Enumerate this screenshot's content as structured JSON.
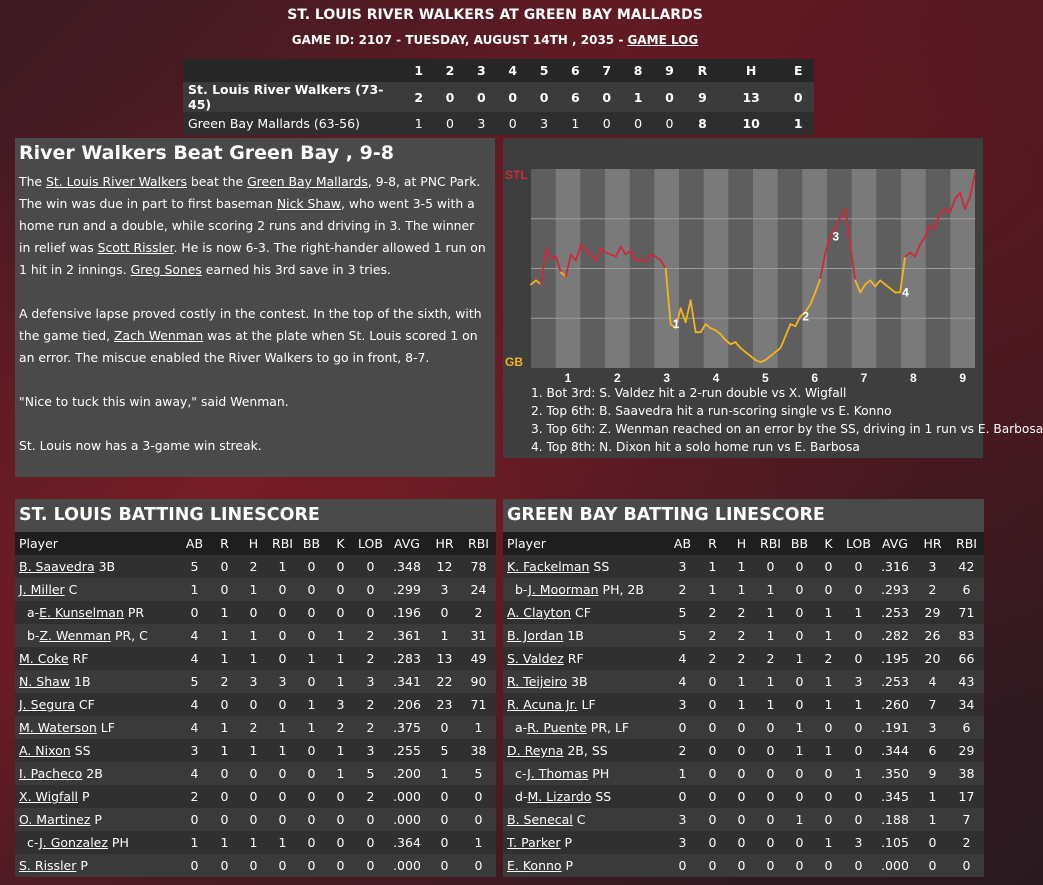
{
  "header": {
    "title": "ST. LOUIS RIVER WALKERS AT GREEN BAY MALLARDS",
    "subtitle": "GAME ID: 2107 - TUESDAY, AUGUST 14TH , 2035 -",
    "game_log_link": "GAME LOG"
  },
  "linescore": {
    "headers": [
      "1",
      "2",
      "3",
      "4",
      "5",
      "6",
      "7",
      "8",
      "9",
      "R",
      "H",
      "E"
    ],
    "rows": [
      {
        "team": "St. Louis River Walkers (73-45)",
        "innings": [
          "2",
          "0",
          "0",
          "0",
          "0",
          "6",
          "0",
          "1",
          "0"
        ],
        "r": "9",
        "h": "13",
        "e": "0"
      },
      {
        "team": "Green Bay Mallards (63-56)",
        "innings": [
          "1",
          "0",
          "3",
          "0",
          "3",
          "1",
          "0",
          "0",
          "0"
        ],
        "r": "8",
        "h": "10",
        "e": "1"
      }
    ]
  },
  "recap": {
    "heading": "River Walkers Beat Green Bay , 9-8",
    "p1": {
      "t1": "The ",
      "l1": "St. Louis River Walkers",
      "t2": " beat the ",
      "l2": "Green Bay Mallards",
      "t3": ", 9-8, at PNC Park. The win was due in part to first baseman ",
      "l3": "Nick Shaw",
      "t4": ", who went 3-5 with a home run and a double, while scoring 2 runs and driving in 3. The winner in relief was ",
      "l4": "Scott Rissler",
      "t5": ". He is now 6-3. The right-hander allowed 1 run on 1 hit in 2 innings. ",
      "l5": "Greg Sones",
      "t6": " earned his 3rd save in 3 tries."
    },
    "p2": {
      "t1": "A defensive lapse proved costly in the contest. In the top of the sixth, with the game tied, ",
      "l1": "Zach Wenman",
      "t2": " was at the plate when St. Louis scored 1 on an error. The miscue enabled the River Walkers to go in front, 8-7."
    },
    "p3": "\"Nice to tuck this win away,\" said Wenman.",
    "p4": "St. Louis now has a 3-game win streak."
  },
  "chart_data": {
    "type": "line",
    "title": "",
    "top_label": "STL",
    "bottom_label": "GB",
    "innings": [
      "1",
      "2",
      "3",
      "4",
      "5",
      "6",
      "7",
      "8",
      "9"
    ],
    "ylim": [
      0,
      1
    ],
    "colors": {
      "stl_side": "#cc2a3c",
      "gb_side": "#f2b51c"
    },
    "series": [
      {
        "values": [
          0.42,
          0.44,
          0.42,
          0.6,
          0.55,
          0.56,
          0.48,
          0.46,
          0.57,
          0.54,
          0.62,
          0.59,
          0.57,
          0.54,
          0.6,
          0.58,
          0.57,
          0.56,
          0.61,
          0.57,
          0.59,
          0.54,
          0.55,
          0.53,
          0.57,
          0.56,
          0.54,
          0.5,
          0.22,
          0.2,
          0.3,
          0.23,
          0.34,
          0.18,
          0.18,
          0.22,
          0.2,
          0.19,
          0.17,
          0.14,
          0.12,
          0.13,
          0.1,
          0.08,
          0.06,
          0.04,
          0.03,
          0.04,
          0.06,
          0.08,
          0.1,
          0.16,
          0.22,
          0.21,
          0.26,
          0.28,
          0.32,
          0.38,
          0.45,
          0.58,
          0.66,
          0.7,
          0.76,
          0.8,
          0.62,
          0.44,
          0.38,
          0.42,
          0.44,
          0.41,
          0.44,
          0.42,
          0.4,
          0.38,
          0.38,
          0.56,
          0.58,
          0.56,
          0.62,
          0.66,
          0.72,
          0.7,
          0.78,
          0.8,
          0.78,
          0.85,
          0.88,
          0.8,
          0.86,
          0.98
        ]
      }
    ],
    "markers": [
      {
        "label": "1",
        "index": 28
      },
      {
        "label": "2",
        "index": 54
      },
      {
        "label": "3",
        "index": 60
      },
      {
        "label": "4",
        "index": 74
      }
    ],
    "events": [
      "1. Bot 3rd: S. Valdez hit a 2-run double vs X. Wigfall",
      "2. Top 6th: B. Saavedra hit a run-scoring single vs E. Konno",
      "3. Top 6th: Z. Wenman reached on an error by the SS, driving in 1 run vs E. Barbosa",
      "4. Top 8th: N. Dixon hit a solo home run vs E. Barbosa"
    ]
  },
  "stl_batting": {
    "title": "ST. LOUIS BATTING LINESCORE",
    "columns": [
      "Player",
      "AB",
      "R",
      "H",
      "RBI",
      "BB",
      "K",
      "LOB",
      "AVG",
      "HR",
      "RBI"
    ],
    "rows": [
      {
        "prefix": "",
        "name": "B. Saavedra",
        "pos": "3B",
        "stats": [
          "5",
          "0",
          "2",
          "1",
          "0",
          "0",
          "0",
          ".348",
          "12",
          "78"
        ]
      },
      {
        "prefix": "",
        "name": "J. Miller",
        "pos": "C",
        "stats": [
          "1",
          "0",
          "1",
          "0",
          "0",
          "0",
          "0",
          ".299",
          "3",
          "24"
        ]
      },
      {
        "prefix": "a-",
        "name": "E. Kunselman",
        "pos": "PR",
        "stats": [
          "0",
          "1",
          "0",
          "0",
          "0",
          "0",
          "0",
          ".196",
          "0",
          "2"
        ]
      },
      {
        "prefix": "b-",
        "name": "Z. Wenman",
        "pos": "PR, C",
        "stats": [
          "4",
          "1",
          "1",
          "0",
          "0",
          "1",
          "2",
          ".361",
          "1",
          "31"
        ]
      },
      {
        "prefix": "",
        "name": "M. Coke",
        "pos": "RF",
        "stats": [
          "4",
          "1",
          "1",
          "0",
          "1",
          "1",
          "2",
          ".283",
          "13",
          "49"
        ]
      },
      {
        "prefix": "",
        "name": "N. Shaw",
        "pos": "1B",
        "stats": [
          "5",
          "2",
          "3",
          "3",
          "0",
          "1",
          "3",
          ".341",
          "22",
          "90"
        ]
      },
      {
        "prefix": "",
        "name": "J. Segura",
        "pos": "CF",
        "stats": [
          "4",
          "0",
          "0",
          "0",
          "1",
          "3",
          "2",
          ".206",
          "23",
          "71"
        ]
      },
      {
        "prefix": "",
        "name": "M. Waterson",
        "pos": "LF",
        "stats": [
          "4",
          "1",
          "2",
          "1",
          "1",
          "2",
          "2",
          ".375",
          "0",
          "1"
        ]
      },
      {
        "prefix": "",
        "name": "A. Nixon",
        "pos": "SS",
        "stats": [
          "3",
          "1",
          "1",
          "1",
          "0",
          "1",
          "3",
          ".255",
          "5",
          "38"
        ]
      },
      {
        "prefix": "",
        "name": "I. Pacheco",
        "pos": "2B",
        "stats": [
          "4",
          "0",
          "0",
          "0",
          "0",
          "1",
          "5",
          ".200",
          "1",
          "5"
        ]
      },
      {
        "prefix": "",
        "name": "X. Wigfall",
        "pos": "P",
        "stats": [
          "2",
          "0",
          "0",
          "0",
          "0",
          "0",
          "2",
          ".000",
          "0",
          "0"
        ]
      },
      {
        "prefix": "",
        "name": "O. Martinez",
        "pos": "P",
        "stats": [
          "0",
          "0",
          "0",
          "0",
          "0",
          "0",
          "0",
          ".000",
          "0",
          "0"
        ]
      },
      {
        "prefix": "c-",
        "name": "J. Gonzalez",
        "pos": "PH",
        "stats": [
          "1",
          "1",
          "1",
          "1",
          "0",
          "0",
          "0",
          ".364",
          "0",
          "1"
        ]
      },
      {
        "prefix": "",
        "name": "S. Rissler",
        "pos": "P",
        "stats": [
          "0",
          "0",
          "0",
          "0",
          "0",
          "0",
          "0",
          ".000",
          "0",
          "0"
        ]
      }
    ]
  },
  "gb_batting": {
    "title": "GREEN BAY BATTING LINESCORE",
    "columns": [
      "Player",
      "AB",
      "R",
      "H",
      "RBI",
      "BB",
      "K",
      "LOB",
      "AVG",
      "HR",
      "RBI"
    ],
    "rows": [
      {
        "prefix": "",
        "name": "K. Fackelman",
        "pos": "SS",
        "stats": [
          "3",
          "1",
          "1",
          "0",
          "0",
          "0",
          "0",
          ".316",
          "3",
          "42"
        ]
      },
      {
        "prefix": "b-",
        "name": "J. Moorman",
        "pos": "PH, 2B",
        "stats": [
          "2",
          "1",
          "1",
          "1",
          "0",
          "0",
          "0",
          ".293",
          "2",
          "6"
        ]
      },
      {
        "prefix": "",
        "name": "A. Clayton",
        "pos": "CF",
        "stats": [
          "5",
          "2",
          "2",
          "1",
          "0",
          "1",
          "1",
          ".253",
          "29",
          "71"
        ]
      },
      {
        "prefix": "",
        "name": "B. Jordan",
        "pos": "1B",
        "stats": [
          "5",
          "2",
          "2",
          "1",
          "0",
          "1",
          "0",
          ".282",
          "26",
          "83"
        ]
      },
      {
        "prefix": "",
        "name": "S. Valdez",
        "pos": "RF",
        "stats": [
          "4",
          "2",
          "2",
          "2",
          "1",
          "2",
          "0",
          ".195",
          "20",
          "66"
        ]
      },
      {
        "prefix": "",
        "name": "R. Teijeiro",
        "pos": "3B",
        "stats": [
          "4",
          "0",
          "1",
          "1",
          "0",
          "1",
          "3",
          ".253",
          "4",
          "43"
        ]
      },
      {
        "prefix": "",
        "name": "R. Acuna Jr.",
        "pos": "LF",
        "stats": [
          "3",
          "0",
          "1",
          "1",
          "0",
          "1",
          "1",
          ".260",
          "7",
          "34"
        ]
      },
      {
        "prefix": "a-",
        "name": "R. Puente",
        "pos": "PR, LF",
        "stats": [
          "0",
          "0",
          "0",
          "0",
          "1",
          "0",
          "0",
          ".191",
          "3",
          "6"
        ]
      },
      {
        "prefix": "",
        "name": "D. Reyna",
        "pos": "2B, SS",
        "stats": [
          "2",
          "0",
          "0",
          "0",
          "1",
          "1",
          "0",
          ".344",
          "6",
          "29"
        ]
      },
      {
        "prefix": "c-",
        "name": "J. Thomas",
        "pos": "PH",
        "stats": [
          "1",
          "0",
          "0",
          "0",
          "0",
          "0",
          "1",
          ".350",
          "9",
          "38"
        ]
      },
      {
        "prefix": "d-",
        "name": "M. Lizardo",
        "pos": "SS",
        "stats": [
          "0",
          "0",
          "0",
          "0",
          "0",
          "0",
          "0",
          ".345",
          "1",
          "17"
        ]
      },
      {
        "prefix": "",
        "name": "B. Senecal",
        "pos": "C",
        "stats": [
          "3",
          "0",
          "0",
          "0",
          "1",
          "0",
          "0",
          ".188",
          "1",
          "7"
        ]
      },
      {
        "prefix": "",
        "name": "T. Parker",
        "pos": "P",
        "stats": [
          "3",
          "0",
          "0",
          "0",
          "0",
          "1",
          "3",
          ".105",
          "0",
          "2"
        ]
      },
      {
        "prefix": "",
        "name": "E. Konno",
        "pos": "P",
        "stats": [
          "0",
          "0",
          "0",
          "0",
          "0",
          "0",
          "0",
          ".000",
          "0",
          "0"
        ]
      }
    ]
  }
}
